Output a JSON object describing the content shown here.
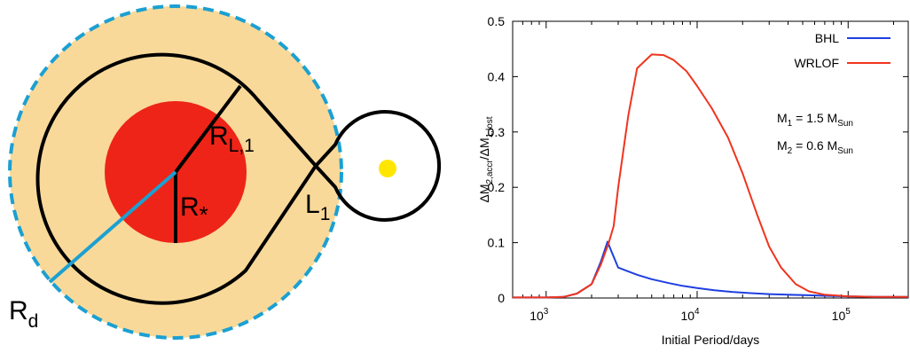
{
  "schematic": {
    "labels": {
      "disk_radius": {
        "main": "R",
        "sub": "d"
      },
      "roche_radius": {
        "main": "R",
        "sub": "L,1"
      },
      "star_radius": {
        "main": "R",
        "sub": "*"
      },
      "lagrange_point": {
        "main": "L",
        "sub": "1"
      }
    },
    "colors": {
      "wind_region": "#F9D999",
      "dashed_border": "#1BA0D2",
      "star": "#EE2418",
      "roche_lobe": "#000000",
      "companion": "#FFE600",
      "disk_radius_line": "#1BA0D2"
    }
  },
  "chart_data": {
    "type": "line",
    "xlabel": "Initial Period/days",
    "ylabel": {
      "main": "ΔM",
      "sub1": "2,accr",
      "mid": "/ΔM",
      "sub2": "1,lost"
    },
    "xscale": "log",
    "xlim": [
      600,
      250000
    ],
    "ylim": [
      0,
      0.5
    ],
    "x_ticks": [
      {
        "value": 1000,
        "base": "10",
        "exp": "3"
      },
      {
        "value": 10000,
        "base": "10",
        "exp": "4"
      },
      {
        "value": 100000,
        "base": "10",
        "exp": "5"
      }
    ],
    "y_ticks": [
      "0",
      "0.1",
      "0.2",
      "0.3",
      "0.4",
      "0.5"
    ],
    "y_tick_values": [
      0,
      0.1,
      0.2,
      0.3,
      0.4,
      0.5
    ],
    "series": [
      {
        "name": "BHL",
        "color": "#1F3FE0",
        "points": [
          [
            600,
            0.001
          ],
          [
            1000,
            0.001
          ],
          [
            1300,
            0.002
          ],
          [
            1600,
            0.008
          ],
          [
            2000,
            0.025
          ],
          [
            2300,
            0.065
          ],
          [
            2550,
            0.102
          ],
          [
            2700,
            0.085
          ],
          [
            3000,
            0.055
          ],
          [
            4000,
            0.042
          ],
          [
            5000,
            0.034
          ],
          [
            6500,
            0.027
          ],
          [
            8000,
            0.022
          ],
          [
            10000,
            0.018
          ],
          [
            13000,
            0.014
          ],
          [
            17000,
            0.011
          ],
          [
            22000,
            0.009
          ],
          [
            30000,
            0.007
          ],
          [
            40000,
            0.006
          ],
          [
            55000,
            0.005
          ],
          [
            70000,
            0.004
          ],
          [
            100000,
            0.003
          ],
          [
            150000,
            0.002
          ],
          [
            250000,
            0.002
          ]
        ]
      },
      {
        "name": "WRLOF",
        "color": "#F0341E",
        "points": [
          [
            600,
            0.001
          ],
          [
            1000,
            0.001
          ],
          [
            1300,
            0.002
          ],
          [
            1600,
            0.008
          ],
          [
            2000,
            0.025
          ],
          [
            2300,
            0.06
          ],
          [
            2600,
            0.1
          ],
          [
            2800,
            0.13
          ],
          [
            3000,
            0.2
          ],
          [
            3500,
            0.33
          ],
          [
            4000,
            0.415
          ],
          [
            5000,
            0.44
          ],
          [
            6000,
            0.439
          ],
          [
            7000,
            0.43
          ],
          [
            8500,
            0.41
          ],
          [
            10000,
            0.383
          ],
          [
            12500,
            0.343
          ],
          [
            16000,
            0.29
          ],
          [
            20000,
            0.225
          ],
          [
            25000,
            0.15
          ],
          [
            30000,
            0.093
          ],
          [
            36000,
            0.055
          ],
          [
            45000,
            0.025
          ],
          [
            55000,
            0.012
          ],
          [
            70000,
            0.006
          ],
          [
            100000,
            0.003
          ],
          [
            150000,
            0.002
          ],
          [
            250000,
            0.002
          ]
        ]
      }
    ],
    "legend_position": "top-right",
    "annotations": [
      {
        "main": "M",
        "sub": "1",
        "text": " = 1.5 M",
        "sub2": "Sun"
      },
      {
        "main": "M",
        "sub": "2",
        "text": " = 0.6 M",
        "sub2": "Sun"
      }
    ],
    "grid": false
  }
}
